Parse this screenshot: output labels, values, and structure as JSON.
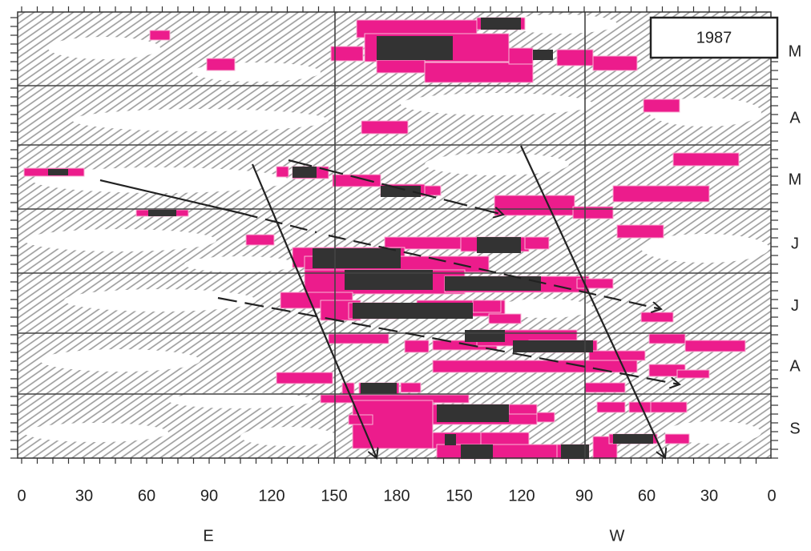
{
  "year_label": "1987",
  "months": [
    "M",
    "A",
    "M",
    "J",
    "J",
    "A",
    "S"
  ],
  "x_axis": {
    "tick_labels": [
      "0",
      "30",
      "60",
      "90",
      "120",
      "150",
      "180",
      "150",
      "120",
      "90",
      "60",
      "30",
      "0"
    ],
    "hemispheres": [
      "E",
      "W"
    ]
  }
}
